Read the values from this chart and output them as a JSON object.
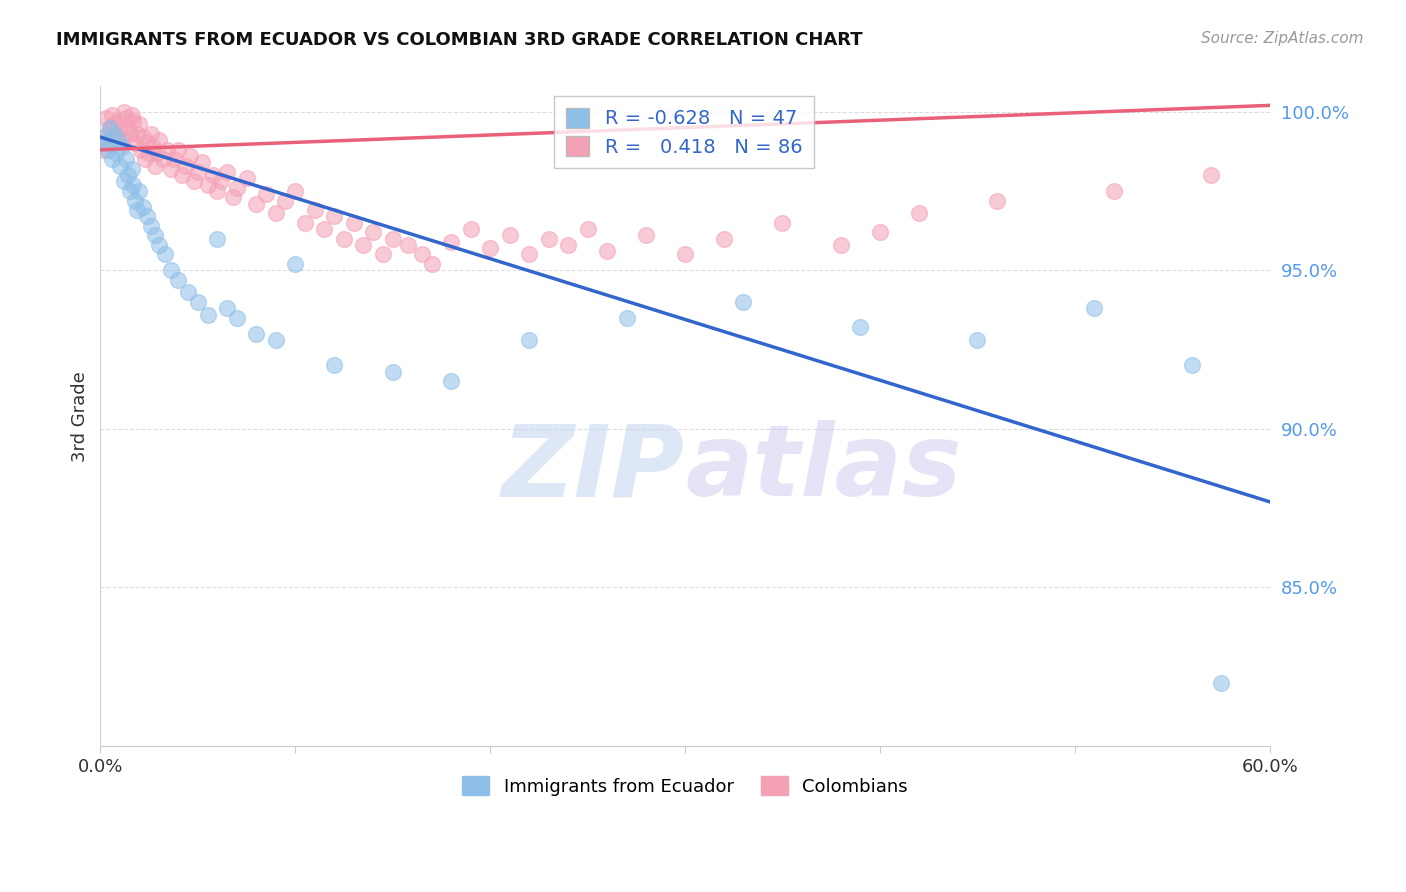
{
  "title": "IMMIGRANTS FROM ECUADOR VS COLOMBIAN 3RD GRADE CORRELATION CHART",
  "source": "Source: ZipAtlas.com",
  "ylabel": "3rd Grade",
  "right_yticks": [
    "100.0%",
    "95.0%",
    "90.0%",
    "85.0%"
  ],
  "right_ytick_vals": [
    1.0,
    0.95,
    0.9,
    0.85
  ],
  "ecuador_color": "#8DBFE8",
  "colombian_color": "#F4A0B5",
  "ecuador_line_color": "#3366CC",
  "colombian_line_color": "#E8607A",
  "ecuador_R": -0.628,
  "ecuador_N": 47,
  "colombian_R": 0.418,
  "colombian_N": 86,
  "xlim": [
    0.0,
    0.6
  ],
  "ylim": [
    0.8,
    1.008
  ],
  "ecuador_scatter_x": [
    0.002,
    0.003,
    0.004,
    0.005,
    0.006,
    0.007,
    0.008,
    0.009,
    0.01,
    0.011,
    0.012,
    0.013,
    0.014,
    0.015,
    0.016,
    0.017,
    0.018,
    0.019,
    0.02,
    0.022,
    0.024,
    0.026,
    0.028,
    0.03,
    0.033,
    0.036,
    0.04,
    0.045,
    0.05,
    0.055,
    0.06,
    0.065,
    0.07,
    0.08,
    0.09,
    0.1,
    0.12,
    0.15,
    0.18,
    0.22,
    0.27,
    0.33,
    0.39,
    0.45,
    0.51,
    0.56,
    0.575
  ],
  "ecuador_scatter_y": [
    0.992,
    0.99,
    0.988,
    0.995,
    0.985,
    0.993,
    0.987,
    0.991,
    0.983,
    0.989,
    0.978,
    0.985,
    0.98,
    0.975,
    0.982,
    0.977,
    0.972,
    0.969,
    0.975,
    0.97,
    0.967,
    0.964,
    0.961,
    0.958,
    0.955,
    0.95,
    0.947,
    0.943,
    0.94,
    0.936,
    0.96,
    0.938,
    0.935,
    0.93,
    0.928,
    0.952,
    0.92,
    0.918,
    0.915,
    0.928,
    0.935,
    0.94,
    0.932,
    0.928,
    0.938,
    0.92,
    0.82
  ],
  "colombian_scatter_x": [
    0.001,
    0.002,
    0.003,
    0.004,
    0.005,
    0.006,
    0.007,
    0.008,
    0.009,
    0.01,
    0.011,
    0.012,
    0.013,
    0.014,
    0.015,
    0.016,
    0.017,
    0.018,
    0.019,
    0.02,
    0.021,
    0.022,
    0.023,
    0.024,
    0.025,
    0.026,
    0.027,
    0.028,
    0.029,
    0.03,
    0.032,
    0.034,
    0.036,
    0.038,
    0.04,
    0.042,
    0.044,
    0.046,
    0.048,
    0.05,
    0.052,
    0.055,
    0.058,
    0.06,
    0.062,
    0.065,
    0.068,
    0.07,
    0.075,
    0.08,
    0.085,
    0.09,
    0.095,
    0.1,
    0.105,
    0.11,
    0.115,
    0.12,
    0.125,
    0.13,
    0.135,
    0.14,
    0.145,
    0.15,
    0.158,
    0.165,
    0.17,
    0.18,
    0.19,
    0.2,
    0.21,
    0.22,
    0.23,
    0.24,
    0.25,
    0.26,
    0.28,
    0.3,
    0.32,
    0.35,
    0.38,
    0.4,
    0.42,
    0.46,
    0.52,
    0.57
  ],
  "colombian_scatter_y": [
    0.99,
    0.988,
    0.998,
    0.993,
    0.995,
    0.999,
    0.996,
    0.992,
    0.997,
    0.994,
    0.991,
    1.0,
    0.998,
    0.995,
    0.993,
    0.999,
    0.997,
    0.99,
    0.993,
    0.996,
    0.988,
    0.992,
    0.985,
    0.99,
    0.987,
    0.993,
    0.989,
    0.983,
    0.987,
    0.991,
    0.985,
    0.988,
    0.982,
    0.985,
    0.988,
    0.98,
    0.983,
    0.986,
    0.978,
    0.981,
    0.984,
    0.977,
    0.98,
    0.975,
    0.978,
    0.981,
    0.973,
    0.976,
    0.979,
    0.971,
    0.974,
    0.968,
    0.972,
    0.975,
    0.965,
    0.969,
    0.963,
    0.967,
    0.96,
    0.965,
    0.958,
    0.962,
    0.955,
    0.96,
    0.958,
    0.955,
    0.952,
    0.959,
    0.963,
    0.957,
    0.961,
    0.955,
    0.96,
    0.958,
    0.963,
    0.956,
    0.961,
    0.955,
    0.96,
    0.965,
    0.958,
    0.962,
    0.968,
    0.972,
    0.975,
    0.98
  ],
  "ecuador_line_x": [
    0.0,
    0.6
  ],
  "ecuador_line_y": [
    0.992,
    0.877
  ],
  "colombian_line_x": [
    0.0,
    0.6
  ],
  "colombian_line_y": [
    0.988,
    1.002
  ],
  "background_color": "#FFFFFF",
  "watermark_zip": "ZIP",
  "watermark_atlas": "atlas",
  "grid_color": "#DDDDDD"
}
